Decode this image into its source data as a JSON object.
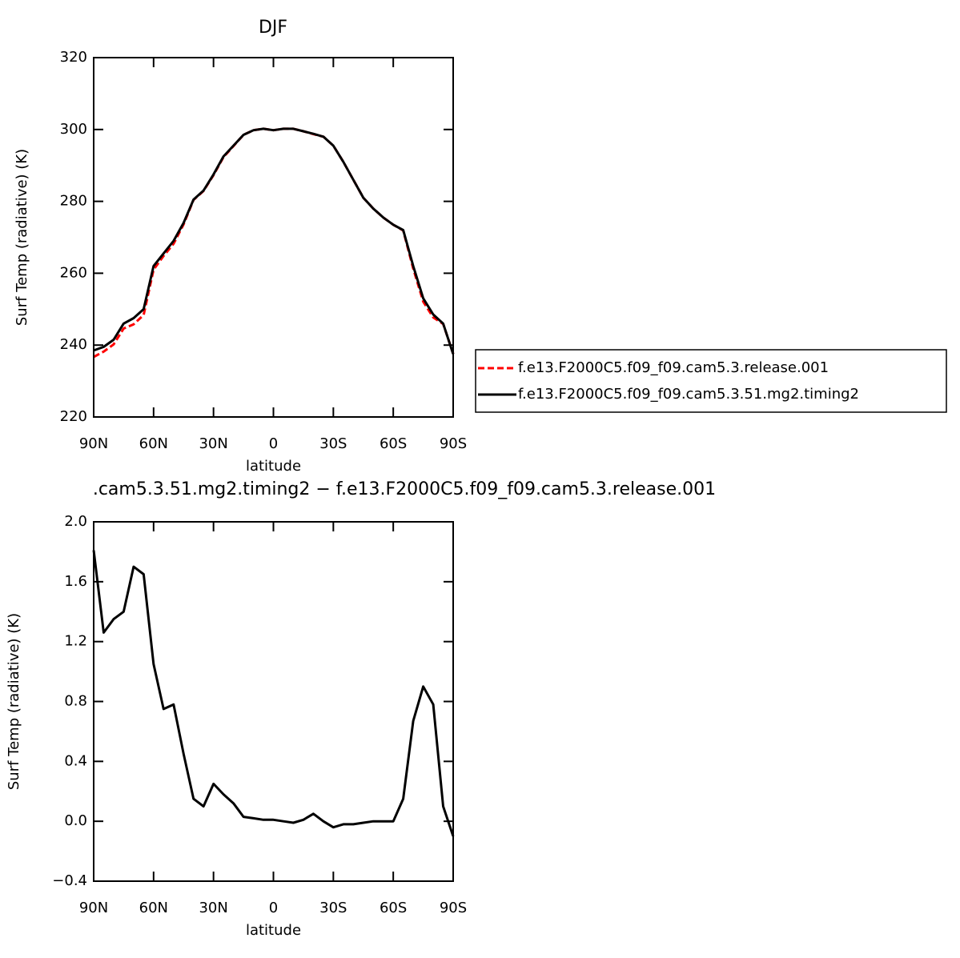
{
  "chart_data": [
    {
      "type": "line",
      "title": "DJF",
      "xlabel": "latitude",
      "ylabel": "Surf Temp (radiative) (K)",
      "x": [
        90,
        85,
        80,
        75,
        70,
        65,
        60,
        55,
        50,
        45,
        40,
        35,
        30,
        25,
        20,
        15,
        10,
        5,
        0,
        -5,
        -10,
        -15,
        -20,
        -25,
        -30,
        -35,
        -40,
        -45,
        -50,
        -55,
        -60,
        -65,
        -70,
        -75,
        -80,
        -85,
        -90
      ],
      "series": [
        {
          "name": "f.e13.F2000C5.f09_f09.cam5.3.release.001",
          "color": "#ff0000",
          "dash": true,
          "values": [
            236.7,
            238.2,
            240.2,
            244.6,
            245.8,
            248.4,
            261,
            264.8,
            268.2,
            273.6,
            280.4,
            282.9,
            287.3,
            292.3,
            295.4,
            298.5,
            299.8,
            300.2,
            299.8,
            300.2,
            300.2,
            299.5,
            298.7,
            298,
            295.5,
            291,
            286,
            281,
            278,
            275.5,
            273.5,
            271.9,
            261.3,
            252.1,
            247.7,
            245.9,
            237.6
          ]
        },
        {
          "name": "f.e13.F2000C5.f09_f09.cam5.3.51.mg2.timing2",
          "color": "#000000",
          "dash": false,
          "values": [
            238.5,
            239.5,
            241.5,
            246,
            247.5,
            250,
            262,
            265.5,
            269,
            274,
            280.5,
            283,
            287.5,
            292.5,
            295.5,
            298.5,
            299.8,
            300.2,
            299.8,
            300.2,
            300.2,
            299.5,
            298.8,
            298,
            295.5,
            291,
            286,
            281,
            278,
            275.5,
            273.5,
            272,
            262,
            253,
            248.5,
            246,
            237.5
          ]
        }
      ],
      "xlim": [
        90,
        -90
      ],
      "xticks": [
        {
          "value": 90,
          "label": "90N"
        },
        {
          "value": 60,
          "label": "60N"
        },
        {
          "value": 30,
          "label": "30N"
        },
        0,
        {
          "value": -30,
          "label": "30S"
        },
        {
          "value": -60,
          "label": "60S"
        },
        {
          "value": -90,
          "label": "90S"
        }
      ],
      "ylim": [
        220,
        320
      ],
      "yticks": [
        220,
        240,
        260,
        280,
        300,
        320
      ],
      "legend": "outside-right"
    },
    {
      "type": "line",
      "title": ".cam5.3.51.mg2.timing2 − f.e13.F2000C5.f09_f09.cam5.3.release.001",
      "xlabel": "latitude",
      "ylabel": "Surf Temp (radiative) (K)",
      "x": [
        90,
        85,
        80,
        75,
        70,
        65,
        60,
        55,
        50,
        45,
        40,
        35,
        30,
        25,
        20,
        15,
        10,
        5,
        0,
        -5,
        -10,
        -15,
        -20,
        -25,
        -30,
        -35,
        -40,
        -45,
        -50,
        -55,
        -60,
        -65,
        -70,
        -75,
        -80,
        -85,
        -90
      ],
      "series": [
        {
          "color": "#000000",
          "dash": false,
          "values": [
            1.81,
            1.26,
            1.35,
            1.4,
            1.7,
            1.65,
            1.05,
            0.75,
            0.78,
            0.45,
            0.15,
            0.1,
            0.25,
            0.18,
            0.12,
            0.03,
            0.02,
            0.01,
            0.01,
            0,
            -0.01,
            0.01,
            0.05,
            0,
            -0.04,
            -0.02,
            -0.02,
            -0.01,
            0,
            0,
            0,
            0.15,
            0.67,
            0.9,
            0.78,
            0.1,
            -0.1
          ]
        }
      ],
      "xlim": [
        90,
        -90
      ],
      "xticks": [
        {
          "value": 90,
          "label": "90N"
        },
        {
          "value": 60,
          "label": "60N"
        },
        {
          "value": 30,
          "label": "30N"
        },
        0,
        {
          "value": -30,
          "label": "30S"
        },
        {
          "value": -60,
          "label": "60S"
        },
        {
          "value": -90,
          "label": "90S"
        }
      ],
      "ylim": [
        -0.4,
        2.0
      ],
      "yticks": [
        {
          "value": -0.4,
          "label": "−0.4"
        },
        {
          "value": 0,
          "label": "0.0"
        },
        0.4,
        0.8,
        1.2,
        1.6,
        {
          "value": 2.0,
          "label": "2.0"
        }
      ]
    }
  ]
}
